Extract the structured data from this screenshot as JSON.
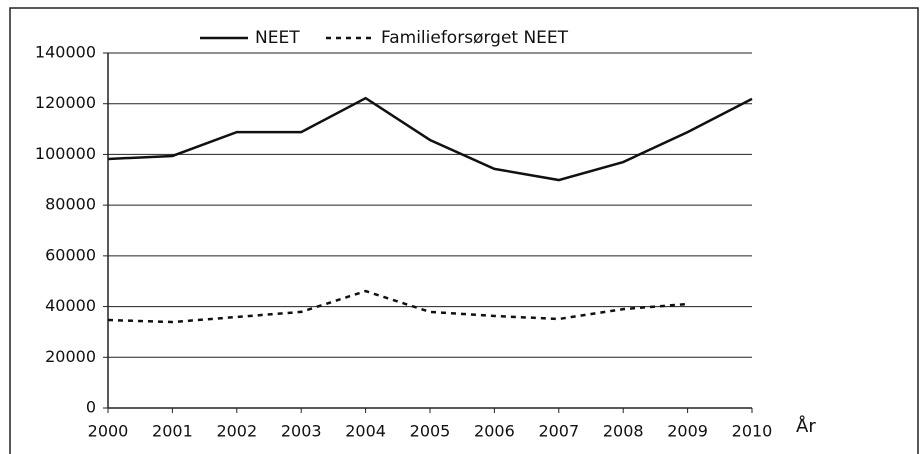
{
  "chart_data": {
    "type": "line",
    "x": [
      2000,
      2001,
      2002,
      2003,
      2004,
      2005,
      2006,
      2007,
      2008,
      2009,
      2010
    ],
    "xlim": [
      2000,
      2010
    ],
    "xticks": [
      2000,
      2001,
      2002,
      2003,
      2004,
      2005,
      2006,
      2007,
      2008,
      2009,
      2010
    ],
    "x_label": "År",
    "ylim": [
      0,
      140000
    ],
    "yticks": [
      0,
      20000,
      40000,
      60000,
      80000,
      100000,
      120000,
      140000
    ],
    "grid": true,
    "legend": "top",
    "series": [
      {
        "name": "NEET",
        "color": "#111111",
        "style": "solid",
        "values": [
          98200,
          99400,
          108800,
          108800,
          122200,
          105700,
          94300,
          89900,
          97000,
          108800,
          121900
        ]
      },
      {
        "name": "Familieforsørget NEET",
        "color": "#111111",
        "style": "dashed",
        "values": [
          34700,
          33900,
          35900,
          37900,
          46100,
          37900,
          36300,
          35100,
          39000,
          41000,
          null
        ]
      }
    ]
  }
}
